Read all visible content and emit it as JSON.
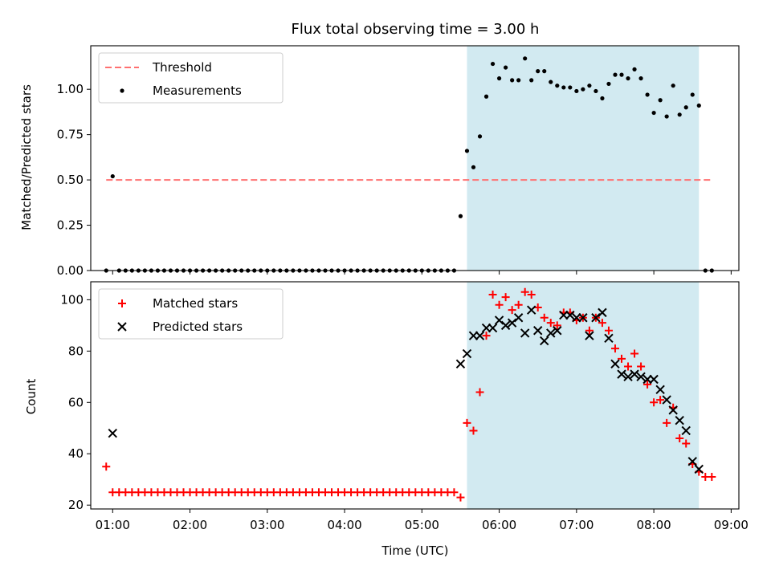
{
  "chart_data": [
    {
      "type": "scatter",
      "panel": "top",
      "title": "Flux total observing time = 3.00 h",
      "xlabel": "",
      "ylabel": "Matched/Predicted stars",
      "ylim": [
        0,
        1.24
      ],
      "xlim": [
        "00:43",
        "09:06"
      ],
      "yticks": [
        "0.00",
        "0.25",
        "0.50",
        "0.75",
        "1.00"
      ],
      "shaded_interval": [
        "05:35",
        "08:35"
      ],
      "shade_color": "#add8e6",
      "legend_position": "top-left",
      "legend": [
        {
          "label": "Threshold",
          "style": "dashed-line",
          "color": "#ff7070"
        },
        {
          "label": "Measurements",
          "style": "dot",
          "color": "#000000"
        }
      ],
      "threshold": {
        "value": 0.5,
        "from": "00:55",
        "to": "08:45"
      },
      "series": [
        {
          "name": "Measurements",
          "color": "#000000",
          "points": [
            [
              "00:55",
              0.0
            ],
            [
              "01:00",
              0.52
            ],
            [
              "01:05",
              0.0
            ],
            [
              "01:10",
              0.0
            ],
            [
              "01:15",
              0.0
            ],
            [
              "01:20",
              0.0
            ],
            [
              "01:25",
              0.0
            ],
            [
              "01:30",
              0.0
            ],
            [
              "01:35",
              0.0
            ],
            [
              "01:40",
              0.0
            ],
            [
              "01:45",
              0.0
            ],
            [
              "01:50",
              0.0
            ],
            [
              "01:55",
              0.0
            ],
            [
              "02:00",
              0.0
            ],
            [
              "02:05",
              0.0
            ],
            [
              "02:10",
              0.0
            ],
            [
              "02:15",
              0.0
            ],
            [
              "02:20",
              0.0
            ],
            [
              "02:25",
              0.0
            ],
            [
              "02:30",
              0.0
            ],
            [
              "02:35",
              0.0
            ],
            [
              "02:40",
              0.0
            ],
            [
              "02:45",
              0.0
            ],
            [
              "02:50",
              0.0
            ],
            [
              "02:55",
              0.0
            ],
            [
              "03:00",
              0.0
            ],
            [
              "03:05",
              0.0
            ],
            [
              "03:10",
              0.0
            ],
            [
              "03:15",
              0.0
            ],
            [
              "03:20",
              0.0
            ],
            [
              "03:25",
              0.0
            ],
            [
              "03:30",
              0.0
            ],
            [
              "03:35",
              0.0
            ],
            [
              "03:40",
              0.0
            ],
            [
              "03:45",
              0.0
            ],
            [
              "03:50",
              0.0
            ],
            [
              "03:55",
              0.0
            ],
            [
              "04:00",
              0.0
            ],
            [
              "04:05",
              0.0
            ],
            [
              "04:10",
              0.0
            ],
            [
              "04:15",
              0.0
            ],
            [
              "04:20",
              0.0
            ],
            [
              "04:25",
              0.0
            ],
            [
              "04:30",
              0.0
            ],
            [
              "04:35",
              0.0
            ],
            [
              "04:40",
              0.0
            ],
            [
              "04:45",
              0.0
            ],
            [
              "04:50",
              0.0
            ],
            [
              "04:55",
              0.0
            ],
            [
              "05:00",
              0.0
            ],
            [
              "05:05",
              0.0
            ],
            [
              "05:10",
              0.0
            ],
            [
              "05:15",
              0.0
            ],
            [
              "05:20",
              0.0
            ],
            [
              "05:25",
              0.0
            ],
            [
              "05:30",
              0.3
            ],
            [
              "05:35",
              0.66
            ],
            [
              "05:40",
              0.57
            ],
            [
              "05:45",
              0.74
            ],
            [
              "05:50",
              0.96
            ],
            [
              "05:55",
              1.14
            ],
            [
              "06:00",
              1.06
            ],
            [
              "06:05",
              1.12
            ],
            [
              "06:10",
              1.05
            ],
            [
              "06:15",
              1.05
            ],
            [
              "06:20",
              1.17
            ],
            [
              "06:25",
              1.05
            ],
            [
              "06:30",
              1.1
            ],
            [
              "06:35",
              1.1
            ],
            [
              "06:40",
              1.04
            ],
            [
              "06:45",
              1.02
            ],
            [
              "06:50",
              1.01
            ],
            [
              "06:55",
              1.01
            ],
            [
              "07:00",
              0.99
            ],
            [
              "07:05",
              1.0
            ],
            [
              "07:10",
              1.02
            ],
            [
              "07:15",
              0.99
            ],
            [
              "07:20",
              0.95
            ],
            [
              "07:25",
              1.03
            ],
            [
              "07:30",
              1.08
            ],
            [
              "07:35",
              1.08
            ],
            [
              "07:40",
              1.06
            ],
            [
              "07:45",
              1.11
            ],
            [
              "07:50",
              1.06
            ],
            [
              "07:55",
              0.97
            ],
            [
              "08:00",
              0.87
            ],
            [
              "08:05",
              0.94
            ],
            [
              "08:10",
              0.85
            ],
            [
              "08:15",
              1.02
            ],
            [
              "08:20",
              0.86
            ],
            [
              "08:25",
              0.9
            ],
            [
              "08:30",
              0.97
            ],
            [
              "08:35",
              0.91
            ],
            [
              "08:40",
              0.0
            ],
            [
              "08:45",
              0.0
            ]
          ]
        }
      ]
    },
    {
      "type": "scatter",
      "panel": "bottom",
      "title": "",
      "xlabel": "Time (UTC)",
      "ylabel": "Count",
      "ylim": [
        18.5,
        107
      ],
      "xlim": [
        "00:43",
        "09:06"
      ],
      "yticks": [
        "20",
        "40",
        "60",
        "80",
        "100"
      ],
      "xticks": [
        "01:00",
        "02:00",
        "03:00",
        "04:00",
        "05:00",
        "06:00",
        "07:00",
        "08:00",
        "09:00"
      ],
      "shaded_interval": [
        "05:35",
        "08:35"
      ],
      "shade_color": "#add8e6",
      "legend_position": "top-left",
      "legend": [
        {
          "label": "Matched stars",
          "style": "plus",
          "color": "#ff0000"
        },
        {
          "label": "Predicted stars",
          "style": "cross",
          "color": "#000000"
        }
      ],
      "series": [
        {
          "name": "Matched stars",
          "marker": "plus",
          "color": "#ff0000",
          "points": [
            [
              "00:55",
              35
            ],
            [
              "01:00",
              25
            ],
            [
              "01:05",
              25
            ],
            [
              "01:10",
              25
            ],
            [
              "01:15",
              25
            ],
            [
              "01:20",
              25
            ],
            [
              "01:25",
              25
            ],
            [
              "01:30",
              25
            ],
            [
              "01:35",
              25
            ],
            [
              "01:40",
              25
            ],
            [
              "01:45",
              25
            ],
            [
              "01:50",
              25
            ],
            [
              "01:55",
              25
            ],
            [
              "02:00",
              25
            ],
            [
              "02:05",
              25
            ],
            [
              "02:10",
              25
            ],
            [
              "02:15",
              25
            ],
            [
              "02:20",
              25
            ],
            [
              "02:25",
              25
            ],
            [
              "02:30",
              25
            ],
            [
              "02:35",
              25
            ],
            [
              "02:40",
              25
            ],
            [
              "02:45",
              25
            ],
            [
              "02:50",
              25
            ],
            [
              "02:55",
              25
            ],
            [
              "03:00",
              25
            ],
            [
              "03:05",
              25
            ],
            [
              "03:10",
              25
            ],
            [
              "03:15",
              25
            ],
            [
              "03:20",
              25
            ],
            [
              "03:25",
              25
            ],
            [
              "03:30",
              25
            ],
            [
              "03:35",
              25
            ],
            [
              "03:40",
              25
            ],
            [
              "03:45",
              25
            ],
            [
              "03:50",
              25
            ],
            [
              "03:55",
              25
            ],
            [
              "04:00",
              25
            ],
            [
              "04:05",
              25
            ],
            [
              "04:10",
              25
            ],
            [
              "04:15",
              25
            ],
            [
              "04:20",
              25
            ],
            [
              "04:25",
              25
            ],
            [
              "04:30",
              25
            ],
            [
              "04:35",
              25
            ],
            [
              "04:40",
              25
            ],
            [
              "04:45",
              25
            ],
            [
              "04:50",
              25
            ],
            [
              "04:55",
              25
            ],
            [
              "05:00",
              25
            ],
            [
              "05:05",
              25
            ],
            [
              "05:10",
              25
            ],
            [
              "05:15",
              25
            ],
            [
              "05:20",
              25
            ],
            [
              "05:25",
              25
            ],
            [
              "05:30",
              23
            ],
            [
              "05:35",
              52
            ],
            [
              "05:40",
              49
            ],
            [
              "05:45",
              64
            ],
            [
              "05:50",
              86
            ],
            [
              "05:55",
              102
            ],
            [
              "06:00",
              98
            ],
            [
              "06:05",
              101
            ],
            [
              "06:10",
              96
            ],
            [
              "06:15",
              98
            ],
            [
              "06:20",
              103
            ],
            [
              "06:25",
              102
            ],
            [
              "06:30",
              97
            ],
            [
              "06:35",
              93
            ],
            [
              "06:40",
              91
            ],
            [
              "06:45",
              90
            ],
            [
              "06:50",
              95
            ],
            [
              "06:55",
              95
            ],
            [
              "07:00",
              92
            ],
            [
              "07:05",
              93
            ],
            [
              "07:10",
              88
            ],
            [
              "07:15",
              93
            ],
            [
              "07:20",
              91
            ],
            [
              "07:25",
              88
            ],
            [
              "07:30",
              81
            ],
            [
              "07:35",
              77
            ],
            [
              "07:40",
              74
            ],
            [
              "07:45",
              79
            ],
            [
              "07:50",
              74
            ],
            [
              "07:55",
              67
            ],
            [
              "08:00",
              60
            ],
            [
              "08:05",
              61
            ],
            [
              "08:10",
              52
            ],
            [
              "08:15",
              58
            ],
            [
              "08:20",
              46
            ],
            [
              "08:25",
              44
            ],
            [
              "08:30",
              36
            ],
            [
              "08:35",
              33
            ],
            [
              "08:40",
              31
            ],
            [
              "08:45",
              31
            ]
          ]
        },
        {
          "name": "Predicted stars",
          "marker": "cross",
          "color": "#000000",
          "points": [
            [
              "01:00",
              48
            ],
            [
              "05:30",
              75
            ],
            [
              "05:35",
              79
            ],
            [
              "05:40",
              86
            ],
            [
              "05:45",
              86
            ],
            [
              "05:50",
              89
            ],
            [
              "05:55",
              89
            ],
            [
              "06:00",
              92
            ],
            [
              "06:05",
              90
            ],
            [
              "06:10",
              91
            ],
            [
              "06:15",
              93
            ],
            [
              "06:20",
              87
            ],
            [
              "06:25",
              96
            ],
            [
              "06:30",
              88
            ],
            [
              "06:35",
              84
            ],
            [
              "06:40",
              87
            ],
            [
              "06:45",
              88
            ],
            [
              "06:50",
              94
            ],
            [
              "06:55",
              94
            ],
            [
              "07:00",
              93
            ],
            [
              "07:05",
              93
            ],
            [
              "07:10",
              86
            ],
            [
              "07:15",
              93
            ],
            [
              "07:20",
              95
            ],
            [
              "07:25",
              85
            ],
            [
              "07:30",
              75
            ],
            [
              "07:35",
              71
            ],
            [
              "07:40",
              70
            ],
            [
              "07:45",
              71
            ],
            [
              "07:50",
              70
            ],
            [
              "07:55",
              69
            ],
            [
              "08:00",
              69
            ],
            [
              "08:05",
              65
            ],
            [
              "08:10",
              61
            ],
            [
              "08:15",
              57
            ],
            [
              "08:20",
              53
            ],
            [
              "08:25",
              49
            ],
            [
              "08:30",
              37
            ],
            [
              "08:35",
              34
            ]
          ]
        }
      ]
    }
  ]
}
